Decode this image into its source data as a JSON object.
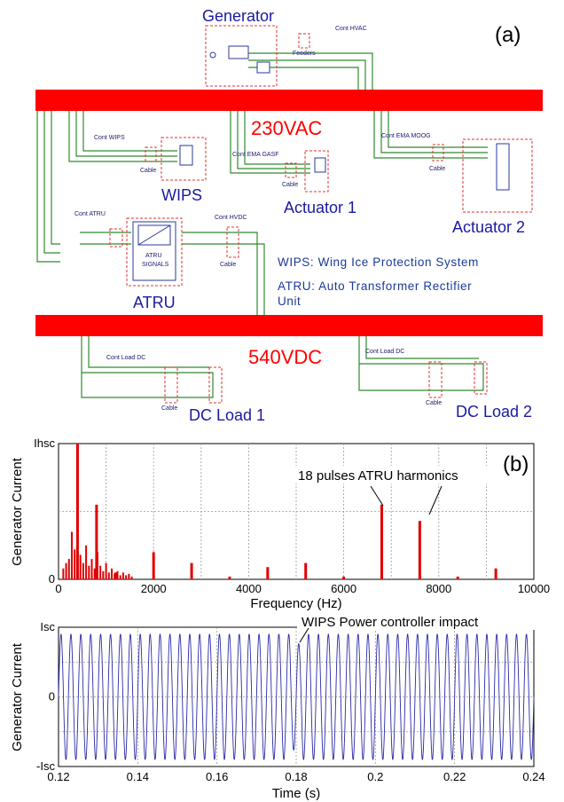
{
  "diagram": {
    "panel_label": "(a)",
    "buses": {
      "ac": "230VAC",
      "dc": "540VDC"
    },
    "components": {
      "generator": "Generator",
      "wips": "WIPS",
      "actuator1": "Actuator 1",
      "actuator2": "Actuator 2",
      "atru": "ATRU",
      "dc_load1": "DC Load 1",
      "dc_load2": "DC Load 2"
    },
    "small_labels": {
      "cont_hvac": "Cont HVAC",
      "feeders": "Feeders",
      "cont_wips": "Cont WIPS",
      "cable_wips": "Cable",
      "cont_ema_gasf": "Cont EMA GASF",
      "cable_act1": "Cable",
      "cont_ema_moog": "Cont EMA MOOG",
      "cable_act2": "Cable",
      "cont_atru": "Cont ATRU",
      "cont_hvdc": "Cont HVDC",
      "cable_hvdc": "Cable",
      "signals": "SIGNALS",
      "atru_block": "ATRU",
      "cont_load_dc1": "Cont Load DC",
      "cable_dc1": "Cable",
      "cont_load_dc2": "Cont Load DC",
      "cable_dc2": "Cable"
    },
    "notes": {
      "wips_def": "WIPS: Wing Ice Protection System",
      "atru_def_line1": "ATRU: Auto Transformer Rectifier",
      "atru_def_line2": "Unit"
    },
    "colors": {
      "bus": "#ff0000",
      "wire": "#2e8b2e",
      "box": "#e03030",
      "text": "#1a1aa0"
    }
  },
  "chart_data": [
    {
      "type": "bar",
      "panel_label": "(b)",
      "xlabel": "Frequency (Hz)",
      "ylabel": "Generator Current",
      "xlim": [
        0,
        10000
      ],
      "ylim": [
        0,
        1
      ],
      "x_ticks": [
        "0",
        "2000",
        "4000",
        "6000",
        "8000",
        "10000"
      ],
      "y_ticks": [
        "0",
        "Ihsc"
      ],
      "grid": true,
      "annotation": "18 pulses ATRU harmonics",
      "series": [
        {
          "x": [
            400,
            800,
            1200,
            2000,
            2800,
            3600,
            4400,
            5200,
            6000,
            6800,
            7600,
            8400,
            9200
          ],
          "values": [
            1.0,
            0.55,
            0.05,
            0.2,
            0.12,
            0.02,
            0.09,
            0.12,
            0.02,
            0.55,
            0.43,
            0.02,
            0.08
          ]
        }
      ],
      "low_band_values": [
        0.08,
        0.12,
        0.15,
        0.35,
        0.22,
        0.3,
        0.18,
        0.12,
        0.25,
        0.1,
        0.15,
        0.08,
        0.2,
        0.1,
        0.06,
        0.12,
        0.05,
        0.08,
        0.04,
        0.06,
        0.03,
        0.05,
        0.03,
        0.04,
        0.02
      ]
    },
    {
      "type": "line",
      "xlabel": "Time (s)",
      "ylabel": "Generator Current",
      "xlim": [
        0.12,
        0.24
      ],
      "ylim": [
        -1,
        1
      ],
      "x_ticks": [
        "0.12",
        "0.14",
        "0.16",
        "0.18",
        "0.2",
        "0.22",
        "0.24"
      ],
      "y_ticks": [
        "-Isc",
        "0",
        "Isc"
      ],
      "grid": true,
      "frequency_hz": 400,
      "amplitude": 0.9,
      "annotation": "WIPS Power controller impact",
      "annotation_x": 0.18
    }
  ]
}
